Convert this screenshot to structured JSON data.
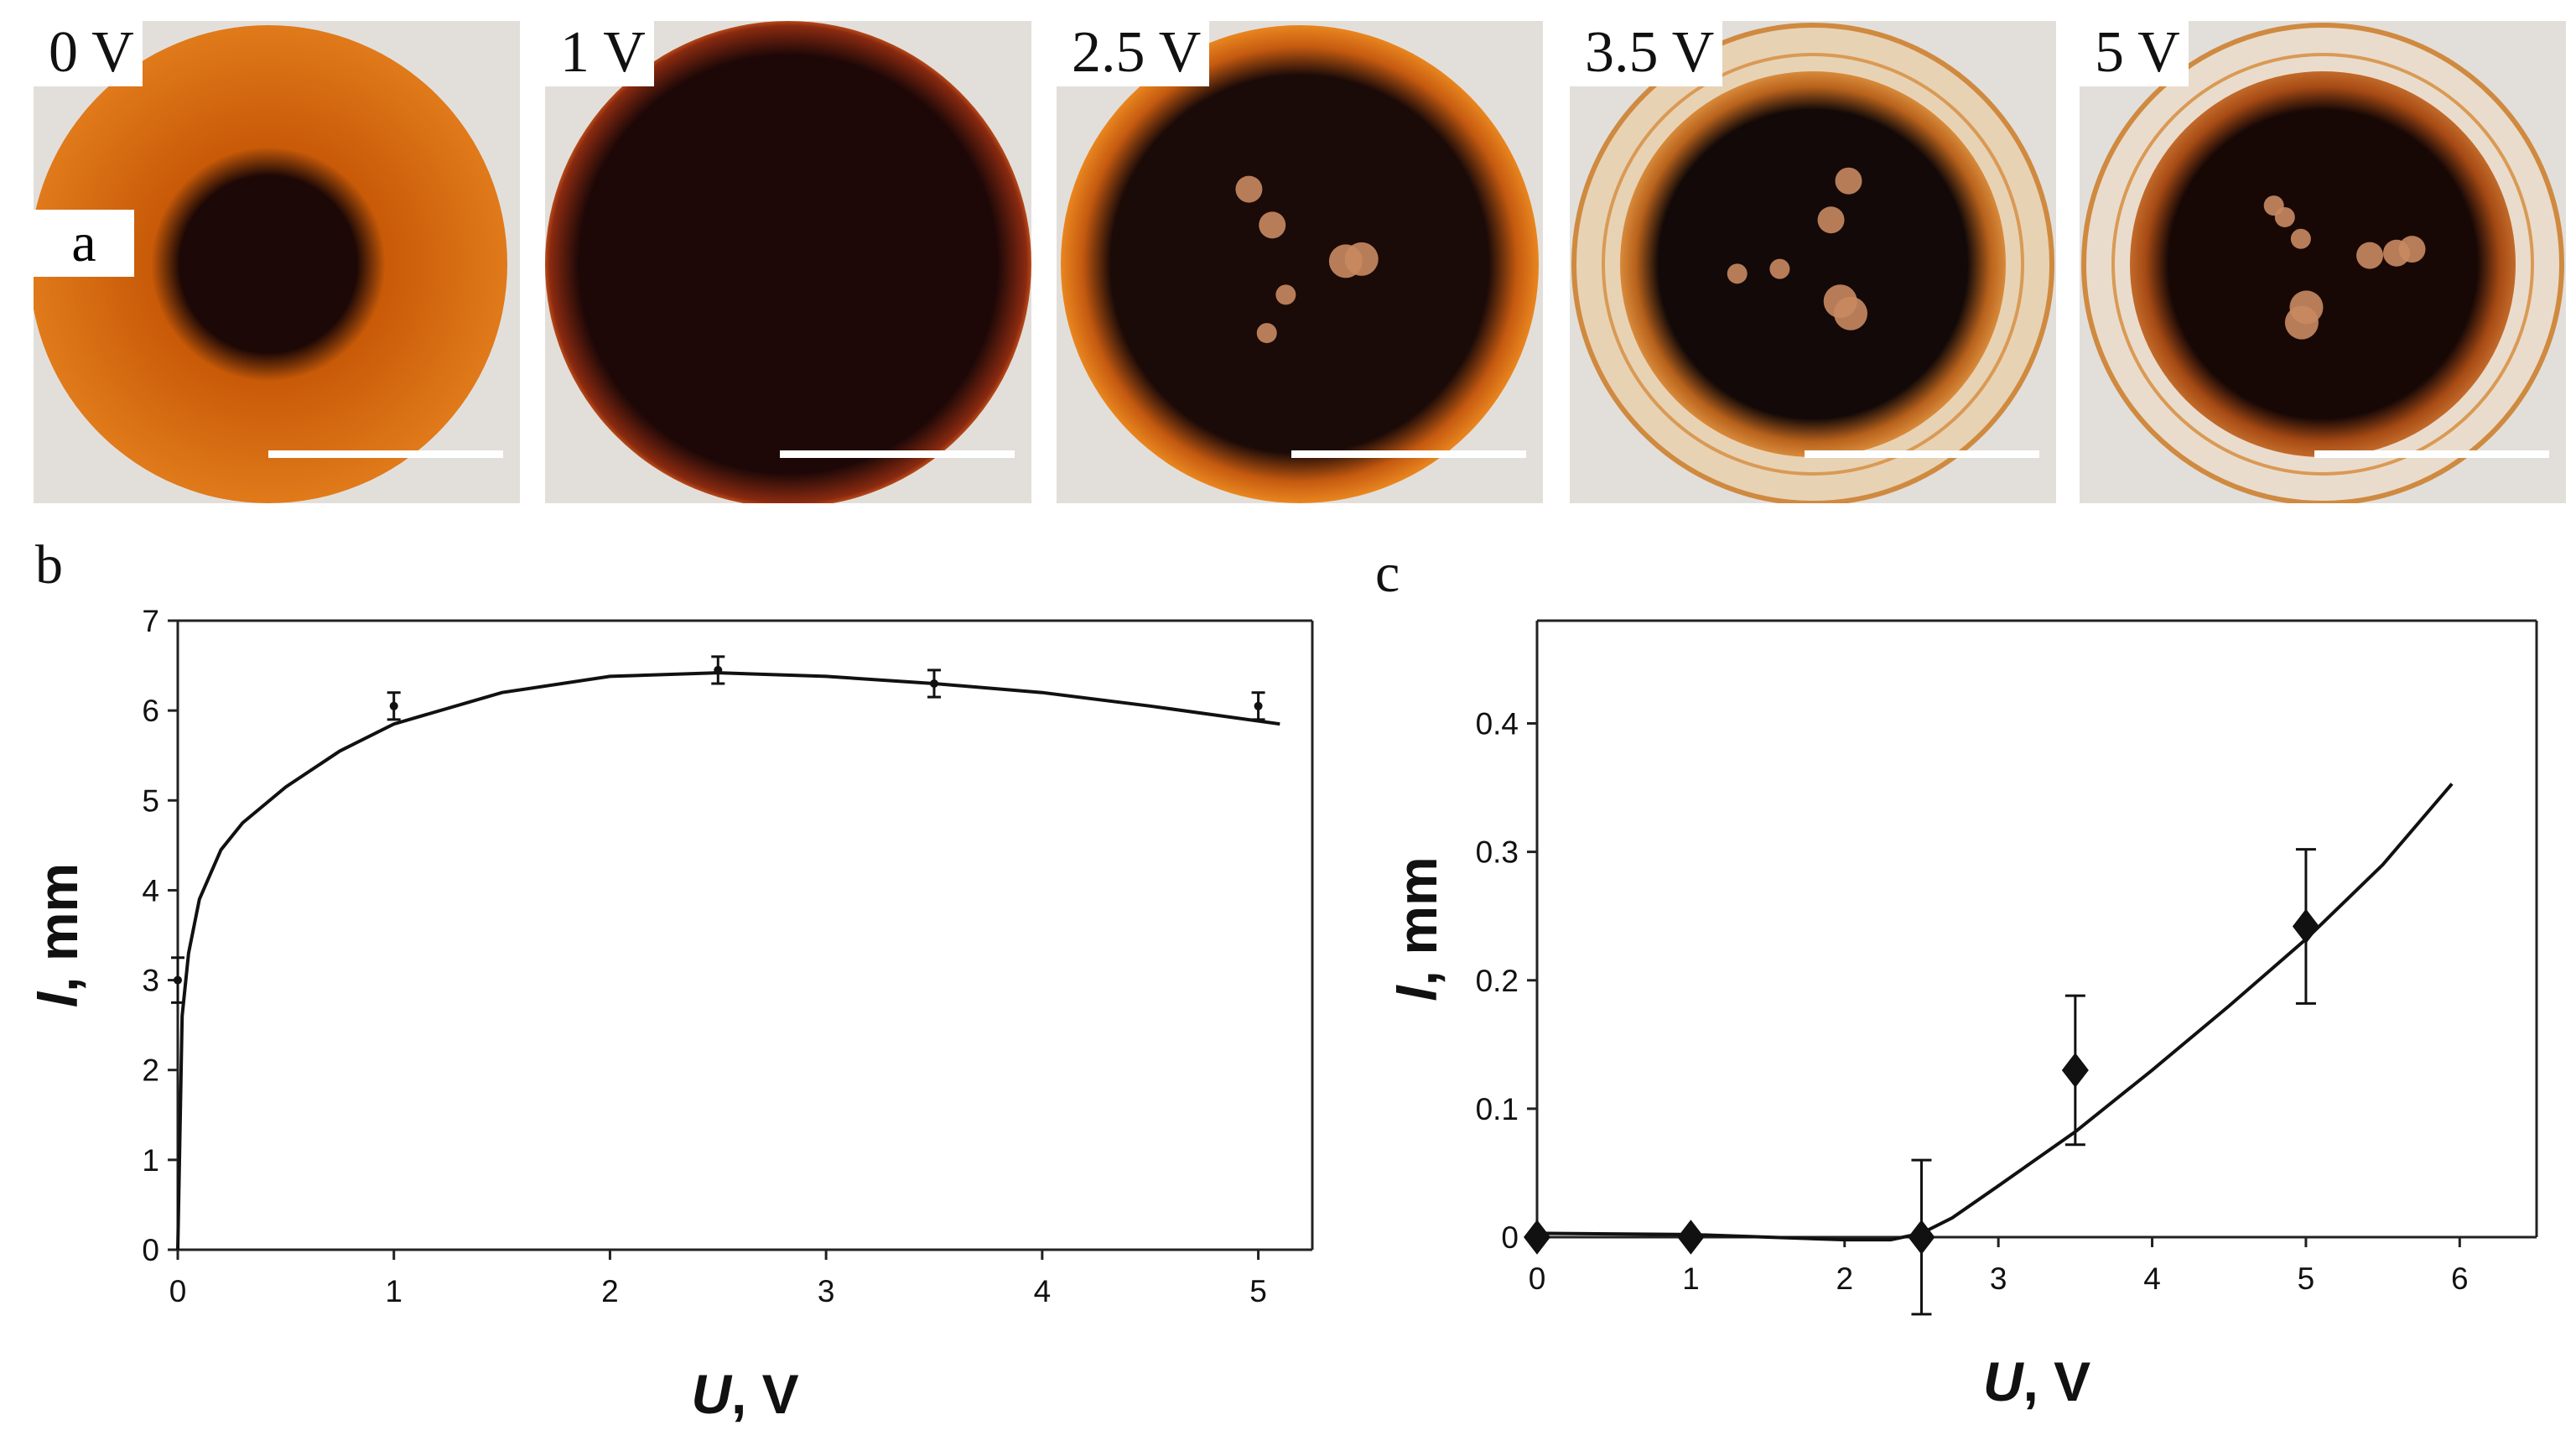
{
  "panel_a": {
    "letter": "a",
    "photos": [
      {
        "voltage_label": "0 V",
        "scale_bar": "white"
      },
      {
        "voltage_label": "1 V",
        "scale_bar": "white"
      },
      {
        "voltage_label": "2.5 V",
        "scale_bar": "white"
      },
      {
        "voltage_label": "3.5 V",
        "scale_bar": "white"
      },
      {
        "voltage_label": "5 V",
        "scale_bar": "white"
      }
    ]
  },
  "chart_data": [
    {
      "panel": "b",
      "type": "line",
      "xlabel_italic": "U",
      "xlabel_rest": ", V",
      "ylabel_italic": "l",
      "ylabel_rest": ", mm",
      "xlim": [
        0,
        5.25
      ],
      "ylim": [
        0,
        7
      ],
      "xticks": [
        "0",
        "1",
        "2",
        "3",
        "4",
        "5"
      ],
      "yticks": [
        "0",
        "1",
        "2",
        "3",
        "4",
        "5",
        "6",
        "7"
      ],
      "points": {
        "x": [
          0,
          1,
          2.5,
          3.5,
          5
        ],
        "y": [
          3.0,
          6.05,
          6.45,
          6.3,
          6.05
        ],
        "err": [
          0.25,
          0.15,
          0.15,
          0.15,
          0.15
        ]
      },
      "fit": {
        "x": [
          0,
          0.02,
          0.05,
          0.1,
          0.2,
          0.3,
          0.5,
          0.75,
          1.0,
          1.5,
          2.0,
          2.5,
          3.0,
          3.5,
          4.0,
          4.5,
          5.1
        ],
        "y": [
          0,
          2.6,
          3.3,
          3.9,
          4.45,
          4.75,
          5.15,
          5.55,
          5.85,
          6.2,
          6.38,
          6.42,
          6.38,
          6.3,
          6.2,
          6.05,
          5.85
        ]
      }
    },
    {
      "panel": "c",
      "type": "line",
      "xlabel_italic": "U",
      "xlabel_rest": ", V",
      "ylabel_italic": "l",
      "ylabel_rest": ", mm",
      "xlim": [
        0,
        6.5
      ],
      "ylim": [
        0,
        0.48
      ],
      "xticks": [
        "0",
        "1",
        "2",
        "3",
        "4",
        "5",
        "6"
      ],
      "yticks": [
        "0",
        "0.1",
        "0.2",
        "0.3",
        "0.4"
      ],
      "points": {
        "x": [
          0,
          1,
          2.5,
          3.5,
          5
        ],
        "y": [
          0,
          0,
          0,
          0.13,
          0.242
        ],
        "err": [
          0,
          0,
          0.06,
          0.058,
          0.06
        ]
      },
      "fit": {
        "x": [
          0,
          1,
          1.5,
          2.0,
          2.3,
          2.5,
          2.7,
          3.0,
          3.5,
          4.0,
          4.5,
          5.0,
          5.5,
          5.95
        ],
        "y": [
          0.003,
          0.002,
          0.0,
          -0.002,
          -0.002,
          0.003,
          0.015,
          0.04,
          0.082,
          0.13,
          0.18,
          0.232,
          0.29,
          0.353
        ]
      }
    }
  ]
}
